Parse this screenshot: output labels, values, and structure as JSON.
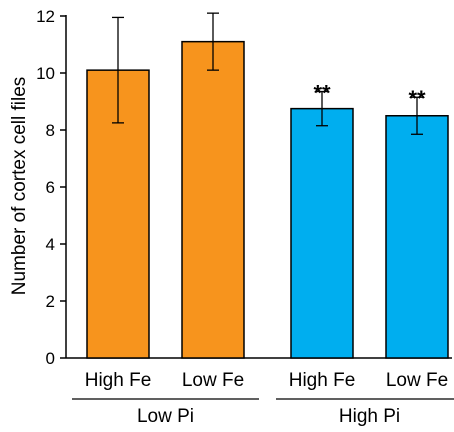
{
  "chart_data": {
    "type": "bar",
    "ylabel": "Number of cortex cell files",
    "ylim": [
      0,
      12
    ],
    "yticks": [
      0,
      2,
      4,
      6,
      8,
      10,
      12
    ],
    "grid": false,
    "legend": "none",
    "categories": [
      "High Fe",
      "Low Fe",
      "High Fe",
      "Low Fe"
    ],
    "groups": [
      {
        "label": "Low Pi",
        "categories": [
          0,
          1
        ]
      },
      {
        "label": "High Pi",
        "categories": [
          2,
          3
        ]
      }
    ],
    "values": [
      10.1,
      11.1,
      8.75,
      8.5
    ],
    "errors": [
      1.85,
      1.0,
      0.6,
      0.65
    ],
    "significance": [
      "",
      "",
      "**",
      "**"
    ],
    "colors": [
      "#F7941D",
      "#F7941D",
      "#00AEEF",
      "#00AEEF"
    ]
  }
}
